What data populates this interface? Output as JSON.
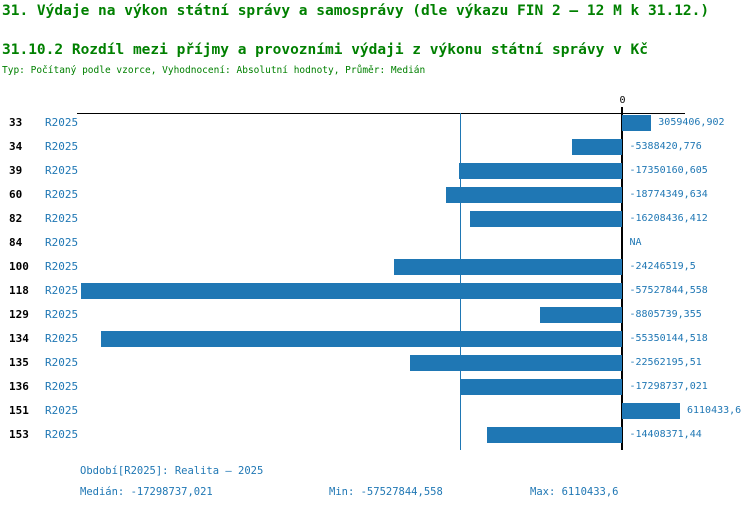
{
  "header": {
    "title": "31. Výdaje na výkon státní správy a samosprávy (dle výkazu FIN 2 – 12 M k 31.12.)",
    "subtitle": "31.10.2 Rozdíl mezi příjmy a provozními výdaji z výkonu státní správy v Kč",
    "meta": "Typ: Počítaný podle vzorce, Vyhodnocení: Absolutní hodnoty, Průměr: Medián"
  },
  "colors": {
    "title_green": "#008000",
    "accent_blue": "#1f77b4",
    "axis_black": "#000000"
  },
  "chart_data": {
    "type": "bar",
    "orientation": "horizontal",
    "zero_tick_label": "0",
    "axis": {
      "min": -57952000,
      "max": 6640000,
      "grid": false
    },
    "median_value": -17298737.021,
    "rows": [
      {
        "id": "33",
        "period": "R2025",
        "value": 3059406.902,
        "label": "3059406,902"
      },
      {
        "id": "34",
        "period": "R2025",
        "value": -5388420.776,
        "label": "-5388420,776"
      },
      {
        "id": "39",
        "period": "R2025",
        "value": -17350160.605,
        "label": "-17350160,605"
      },
      {
        "id": "60",
        "period": "R2025",
        "value": -18774349.634,
        "label": "-18774349,634"
      },
      {
        "id": "82",
        "period": "R2025",
        "value": -16208436.412,
        "label": "-16208436,412"
      },
      {
        "id": "84",
        "period": "R2025",
        "value": null,
        "label": "NA"
      },
      {
        "id": "100",
        "period": "R2025",
        "value": -24246519.5,
        "label": "-24246519,5"
      },
      {
        "id": "118",
        "period": "R2025",
        "value": -57527844.558,
        "label": "-57527844,558"
      },
      {
        "id": "129",
        "period": "R2025",
        "value": -8805739.355,
        "label": "-8805739,355"
      },
      {
        "id": "134",
        "period": "R2025",
        "value": -55350144.518,
        "label": "-55350144,518"
      },
      {
        "id": "135",
        "period": "R2025",
        "value": -22562195.51,
        "label": "-22562195,51"
      },
      {
        "id": "136",
        "period": "R2025",
        "value": -17298737.021,
        "label": "-17298737,021"
      },
      {
        "id": "151",
        "period": "R2025",
        "value": 6110433.6,
        "label": "6110433,6"
      },
      {
        "id": "153",
        "period": "R2025",
        "value": -14408371.44,
        "label": "-14408371,44"
      }
    ]
  },
  "footer": {
    "period_line": "Období[R2025]: Realita – 2025",
    "median_label": "Medián: -17298737,021",
    "min_label": "Min: -57527844,558",
    "max_label": "Max: 6110433,6"
  }
}
